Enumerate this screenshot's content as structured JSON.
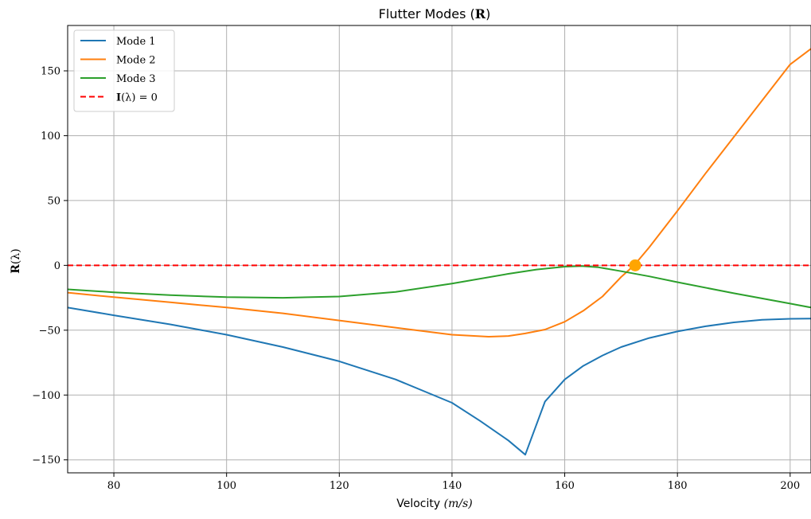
{
  "chart_data": {
    "type": "line",
    "title": "Flutter Modes (R)",
    "title_parts": {
      "text": "Flutter Modes (",
      "symbol": "R",
      "close": ")"
    },
    "xlabel_parts": {
      "text": "Velocity ",
      "unit": "(m/s)"
    },
    "ylabel_parts": {
      "symbol": "R",
      "arg": "(λ)"
    },
    "xlim": [
      71.8,
      203.7
    ],
    "ylim": [
      -160,
      185
    ],
    "xticks": [
      80,
      100,
      120,
      140,
      160,
      180,
      200
    ],
    "yticks": [
      -150,
      -100,
      -50,
      0,
      50,
      100,
      150
    ],
    "xtick_labels": [
      "80",
      "100",
      "120",
      "140",
      "160",
      "180",
      "200"
    ],
    "ytick_labels": [
      "−150",
      "−100",
      "−50",
      "0",
      "50",
      "100",
      "150"
    ],
    "grid": true,
    "legend_position": "top-left",
    "series": [
      {
        "name": "Mode 1",
        "color": "#1f77b4",
        "style": "solid",
        "x": [
          71.8,
          80,
          90,
          100,
          110,
          120,
          130,
          140,
          145,
          150,
          153,
          156.5,
          160,
          163.3,
          166.7,
          170,
          175,
          180,
          185,
          190,
          195,
          200,
          203.7
        ],
        "y": [
          -32.5,
          -38.5,
          -45.5,
          -53.5,
          -63,
          -74,
          -88,
          -106,
          -120,
          -135,
          -146,
          -105,
          -88,
          -77.5,
          -69.5,
          -63,
          -56,
          -51,
          -47,
          -44,
          -42,
          -41.2,
          -41
        ]
      },
      {
        "name": "Mode 2",
        "color": "#ff7f0e",
        "style": "solid",
        "x": [
          71.8,
          80,
          90,
          100,
          110,
          120,
          130,
          140,
          146.5,
          150,
          153,
          156.5,
          160,
          163.3,
          166.7,
          170,
          172.3,
          175,
          180,
          185,
          190,
          195,
          200,
          203.7
        ],
        "y": [
          -21,
          -24.5,
          -28.5,
          -32.5,
          -37,
          -42.5,
          -48,
          -53.5,
          -55,
          -54.5,
          -52.5,
          -49.5,
          -43.5,
          -35,
          -24,
          -9,
          0,
          14,
          42,
          71,
          99,
          127,
          155,
          167
        ]
      },
      {
        "name": "Mode 3",
        "color": "#2ca02c",
        "style": "solid",
        "x": [
          71.8,
          80,
          90,
          100,
          110,
          120,
          130,
          140,
          150,
          155,
          160,
          163,
          166,
          170,
          175,
          180,
          190,
          200,
          203.7
        ],
        "y": [
          -18.5,
          -20.8,
          -23,
          -24.5,
          -25,
          -24,
          -20.5,
          -14,
          -6.5,
          -3.2,
          -1,
          -0.6,
          -1.5,
          -4.5,
          -8.5,
          -13,
          -21.5,
          -29.5,
          -32.5
        ]
      },
      {
        "name": "I(λ) = 0",
        "color": "#ff0000",
        "style": "dashed",
        "x": [
          71.8,
          203.7
        ],
        "y": [
          0,
          0
        ]
      }
    ],
    "legend_entries": [
      {
        "plain": "Mode 1"
      },
      {
        "plain": "Mode 2"
      },
      {
        "plain": "Mode 3"
      },
      {
        "symbol": "I",
        "rest": "(λ) = 0"
      }
    ],
    "markers": [
      {
        "x": 172.5,
        "y": 0,
        "color": "#ffa500"
      }
    ]
  }
}
